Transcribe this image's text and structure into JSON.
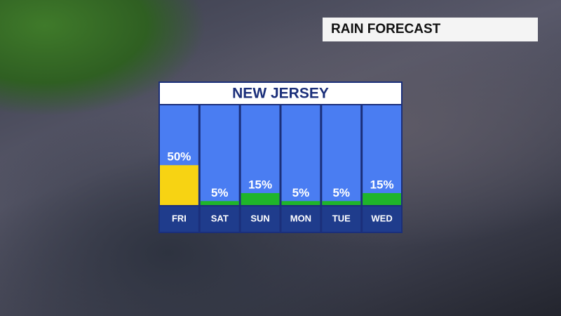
{
  "header": {
    "title": "RAIN FORECAST"
  },
  "chart_data": {
    "type": "bar",
    "title": "NEW JERSEY",
    "categories": [
      "FRI",
      "SAT",
      "SUN",
      "MON",
      "TUE",
      "WED"
    ],
    "values": [
      50,
      5,
      15,
      5,
      5,
      15
    ],
    "value_labels": [
      "50%",
      "5%",
      "15%",
      "5%",
      "5%",
      "15%"
    ],
    "colors": [
      "#f7d313",
      "#1fb52a",
      "#1fb52a",
      "#1fb52a",
      "#1fb52a",
      "#1fb52a"
    ],
    "ylim": [
      0,
      125
    ]
  }
}
